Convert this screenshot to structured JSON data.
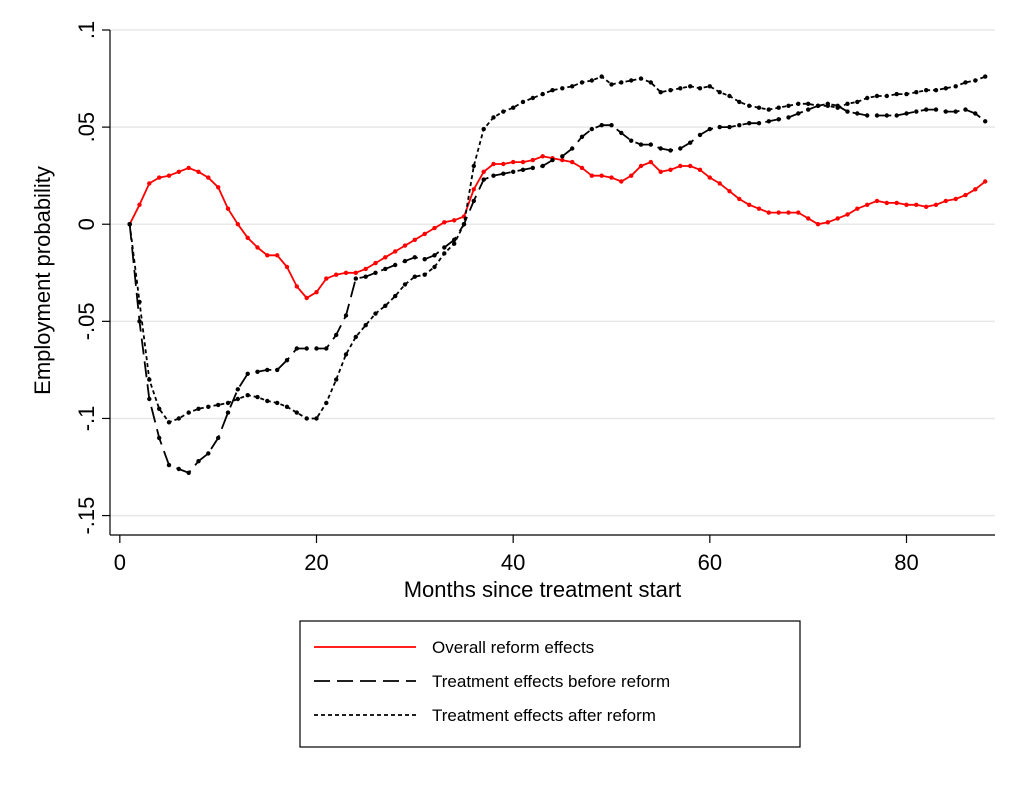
{
  "chart_data": {
    "type": "line",
    "title": "",
    "xlabel": "Months since treatment start",
    "ylabel": "Employment probability",
    "xlim": [
      -1,
      89
    ],
    "ylim": [
      -0.16,
      0.1
    ],
    "xticks": [
      0,
      20,
      40,
      60,
      80
    ],
    "xtick_labels": [
      "0",
      "20",
      "40",
      "60",
      "80"
    ],
    "yticks": [
      -0.15,
      -0.1,
      -0.05,
      0,
      0.05,
      0.1
    ],
    "ytick_labels": [
      "-.15",
      "-.1",
      "-.05",
      "0",
      ".05",
      ".1"
    ],
    "grid": "horizontal",
    "legend_position": "bottom",
    "series": [
      {
        "name": "Overall reform effects",
        "color": "#ff0000",
        "dash": "solid",
        "x": [
          1,
          2,
          3,
          4,
          5,
          6,
          7,
          8,
          9,
          10,
          11,
          12,
          13,
          14,
          15,
          16,
          17,
          18,
          19,
          20,
          21,
          22,
          23,
          24,
          25,
          26,
          27,
          28,
          29,
          30,
          31,
          32,
          33,
          34,
          35,
          36,
          37,
          38,
          39,
          40,
          41,
          42,
          43,
          44,
          45,
          46,
          47,
          48,
          49,
          50,
          51,
          52,
          53,
          54,
          55,
          56,
          57,
          58,
          59,
          60,
          61,
          62,
          63,
          64,
          65,
          66,
          67,
          68,
          69,
          70,
          71,
          72,
          73,
          74,
          75,
          76,
          77,
          78,
          79,
          80,
          81,
          82,
          83,
          84,
          85,
          86,
          87,
          88
        ],
        "values": [
          0.0,
          0.01,
          0.021,
          0.024,
          0.025,
          0.027,
          0.029,
          0.027,
          0.024,
          0.019,
          0.008,
          0.0,
          -0.007,
          -0.012,
          -0.016,
          -0.016,
          -0.022,
          -0.032,
          -0.038,
          -0.035,
          -0.028,
          -0.026,
          -0.025,
          -0.025,
          -0.023,
          -0.02,
          -0.017,
          -0.014,
          -0.011,
          -0.008,
          -0.005,
          -0.002,
          0.001,
          0.002,
          0.004,
          0.018,
          0.027,
          0.031,
          0.031,
          0.032,
          0.032,
          0.033,
          0.035,
          0.034,
          0.033,
          0.032,
          0.029,
          0.025,
          0.025,
          0.024,
          0.022,
          0.025,
          0.03,
          0.032,
          0.027,
          0.028,
          0.03,
          0.03,
          0.028,
          0.024,
          0.021,
          0.017,
          0.013,
          0.01,
          0.008,
          0.006,
          0.006,
          0.006,
          0.006,
          0.003,
          0.0,
          0.001,
          0.003,
          0.005,
          0.008,
          0.01,
          0.012,
          0.011,
          0.011,
          0.01,
          0.01,
          0.009,
          0.01,
          0.012,
          0.013,
          0.015,
          0.018,
          0.022
        ]
      },
      {
        "name": "Treatment effects before reform",
        "color": "#000000",
        "dash": "long-dash",
        "x": [
          1,
          2,
          3,
          4,
          5,
          6,
          7,
          8,
          9,
          10,
          11,
          12,
          13,
          14,
          15,
          16,
          17,
          18,
          19,
          20,
          21,
          22,
          23,
          24,
          25,
          26,
          27,
          28,
          29,
          30,
          31,
          32,
          33,
          34,
          35,
          36,
          37,
          38,
          39,
          40,
          41,
          42,
          43,
          44,
          45,
          46,
          47,
          48,
          49,
          50,
          51,
          52,
          53,
          54,
          55,
          56,
          57,
          58,
          59,
          60,
          61,
          62,
          63,
          64,
          65,
          66,
          67,
          68,
          69,
          70,
          71,
          72,
          73,
          74,
          75,
          76,
          77,
          78,
          79,
          80,
          81,
          82,
          83,
          84,
          85,
          86,
          87,
          88
        ],
        "values": [
          0.0,
          -0.05,
          -0.09,
          -0.11,
          -0.124,
          -0.126,
          -0.128,
          -0.122,
          -0.118,
          -0.11,
          -0.097,
          -0.085,
          -0.077,
          -0.076,
          -0.075,
          -0.075,
          -0.07,
          -0.064,
          -0.064,
          -0.064,
          -0.064,
          -0.057,
          -0.047,
          -0.028,
          -0.027,
          -0.025,
          -0.023,
          -0.021,
          -0.019,
          -0.017,
          -0.018,
          -0.016,
          -0.012,
          -0.008,
          0.0,
          0.012,
          0.023,
          0.025,
          0.026,
          0.027,
          0.028,
          0.029,
          0.03,
          0.033,
          0.035,
          0.039,
          0.045,
          0.049,
          0.051,
          0.051,
          0.047,
          0.043,
          0.041,
          0.041,
          0.039,
          0.038,
          0.039,
          0.042,
          0.046,
          0.049,
          0.05,
          0.05,
          0.051,
          0.052,
          0.052,
          0.053,
          0.054,
          0.055,
          0.057,
          0.059,
          0.061,
          0.062,
          0.061,
          0.058,
          0.057,
          0.056,
          0.056,
          0.056,
          0.056,
          0.057,
          0.058,
          0.059,
          0.059,
          0.058,
          0.058,
          0.059,
          0.057,
          0.053
        ]
      },
      {
        "name": "Treatment effects after reform",
        "color": "#000000",
        "dash": "short-dash",
        "x": [
          1,
          2,
          3,
          4,
          5,
          6,
          7,
          8,
          9,
          10,
          11,
          12,
          13,
          14,
          15,
          16,
          17,
          18,
          19,
          20,
          21,
          22,
          23,
          24,
          25,
          26,
          27,
          28,
          29,
          30,
          31,
          32,
          33,
          34,
          35,
          36,
          37,
          38,
          39,
          40,
          41,
          42,
          43,
          44,
          45,
          46,
          47,
          48,
          49,
          50,
          51,
          52,
          53,
          54,
          55,
          56,
          57,
          58,
          59,
          60,
          61,
          62,
          63,
          64,
          65,
          66,
          67,
          68,
          69,
          70,
          71,
          72,
          73,
          74,
          75,
          76,
          77,
          78,
          79,
          80,
          81,
          82,
          83,
          84,
          85,
          86,
          87,
          88
        ],
        "values": [
          0.0,
          -0.04,
          -0.08,
          -0.095,
          -0.102,
          -0.1,
          -0.097,
          -0.095,
          -0.094,
          -0.093,
          -0.092,
          -0.09,
          -0.088,
          -0.089,
          -0.091,
          -0.092,
          -0.094,
          -0.097,
          -0.1,
          -0.1,
          -0.092,
          -0.08,
          -0.067,
          -0.058,
          -0.052,
          -0.046,
          -0.042,
          -0.037,
          -0.031,
          -0.027,
          -0.026,
          -0.022,
          -0.015,
          -0.01,
          0.0,
          0.03,
          0.049,
          0.055,
          0.058,
          0.06,
          0.063,
          0.065,
          0.067,
          0.069,
          0.07,
          0.071,
          0.073,
          0.074,
          0.076,
          0.072,
          0.073,
          0.074,
          0.075,
          0.073,
          0.068,
          0.069,
          0.07,
          0.071,
          0.07,
          0.071,
          0.068,
          0.066,
          0.063,
          0.061,
          0.06,
          0.059,
          0.06,
          0.061,
          0.062,
          0.062,
          0.061,
          0.061,
          0.06,
          0.062,
          0.063,
          0.065,
          0.066,
          0.066,
          0.067,
          0.067,
          0.068,
          0.069,
          0.069,
          0.07,
          0.071,
          0.073,
          0.074,
          0.076
        ]
      }
    ]
  }
}
